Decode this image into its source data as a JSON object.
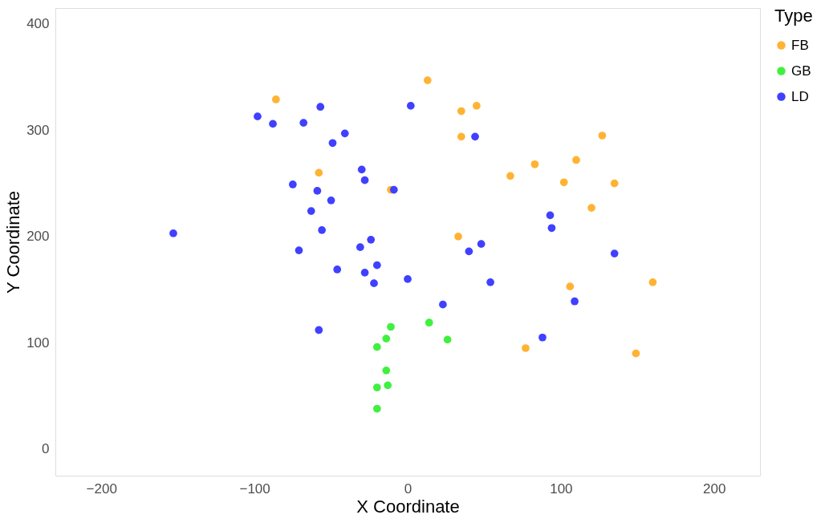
{
  "chart_data": {
    "type": "scatter",
    "xlabel": "X Coordinate",
    "ylabel": "Y Coordinate",
    "legend_title": "Type",
    "legend": "right",
    "marker": "circle",
    "grid": false,
    "xlim": [
      -230,
      230
    ],
    "xticks": [
      -200,
      -100,
      0,
      100,
      200
    ],
    "ylim": [
      -25,
      415
    ],
    "yticks": [
      0,
      100,
      200,
      300,
      400
    ],
    "series": [
      {
        "name": "FB",
        "color": "#ffb333",
        "x": [
          -86,
          13,
          35,
          45,
          35,
          -58,
          -11,
          33,
          67,
          83,
          102,
          110,
          127,
          120,
          135,
          106,
          77,
          160,
          149
        ],
        "values": [
          329,
          347,
          318,
          323,
          294,
          260,
          244,
          200,
          257,
          268,
          251,
          272,
          295,
          227,
          250,
          153,
          95,
          157,
          90
        ]
      },
      {
        "name": "GB",
        "color": "#40f040",
        "x": [
          -11,
          -14,
          -20,
          -14,
          -13,
          -20,
          -20,
          14,
          26
        ],
        "values": [
          115,
          104,
          96,
          74,
          60,
          58,
          38,
          119,
          103
        ]
      },
      {
        "name": "LD",
        "color": "#4040ff",
        "x": [
          -98,
          -88,
          -68,
          -57,
          -49,
          -41,
          2,
          44,
          -75,
          -59,
          -63,
          -50,
          -30,
          -28,
          -9,
          -56,
          -71,
          -31,
          -24,
          -20,
          -153,
          -46,
          -28,
          -22,
          0,
          -58,
          93,
          94,
          48,
          40,
          135,
          54,
          23,
          109,
          88
        ],
        "values": [
          313,
          306,
          307,
          322,
          288,
          297,
          323,
          294,
          249,
          243,
          224,
          234,
          263,
          253,
          244,
          206,
          187,
          190,
          197,
          173,
          203,
          169,
          166,
          156,
          160,
          112,
          220,
          208,
          193,
          186,
          184,
          157,
          136,
          139,
          105
        ]
      }
    ]
  }
}
